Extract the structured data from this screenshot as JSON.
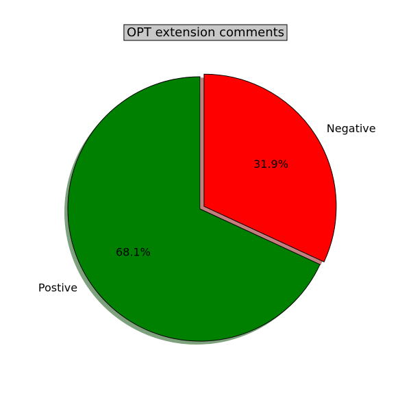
{
  "chart_data": {
    "type": "pie",
    "title": "OPT extension comments",
    "slices": [
      {
        "label": "Postive",
        "value": 68.1,
        "pct_label": "68.1%",
        "color": "#008000",
        "explode": false
      },
      {
        "label": "Negative",
        "value": 31.9,
        "pct_label": "31.9%",
        "color": "#ff0000",
        "explode": true
      }
    ],
    "start_angle_deg": 90,
    "counterclock": true,
    "shadow": true,
    "legend": "none",
    "grid": false
  }
}
